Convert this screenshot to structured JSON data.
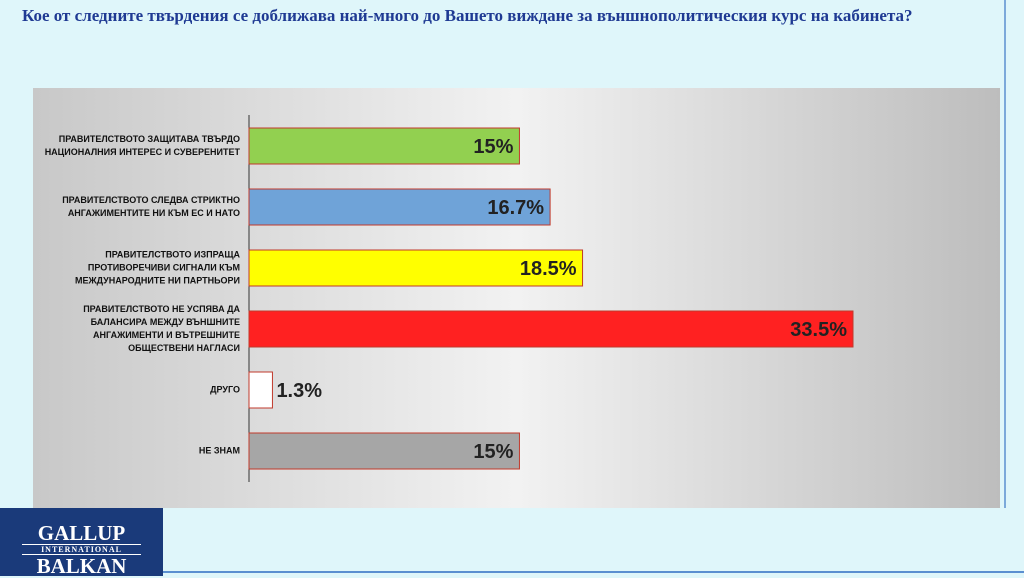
{
  "chart_data": {
    "type": "bar",
    "orientation": "horizontal",
    "title": "Кое от следните твърдения се доближава най-много до Вашето виждане за външнополитическия курс на кабинета?",
    "categories": [
      "ПРАВИТЕЛСТВОТО ЗАЩИТАВА ТВЪРДО НАЦИОНАЛНИЯ ИНТЕРЕС И СУВЕРЕНИТЕТ",
      "ПРАВИТЕЛСТВОТО СЛЕДВА СТРИКТНО АНГАЖИМЕНТИТЕ НИ КЪМ ЕС И НАТО",
      "ПРАВИТЕЛСТВОТО ИЗПРАЩА ПРОТИВОРЕЧИВИ СИГНАЛИ КЪМ МЕЖДУНАРОДНИТЕ НИ ПАРТНЬОРИ",
      "ПРАВИТЕЛСТВОТО НЕ УСПЯВА ДА БАЛАНСИРА МЕЖДУ ВЪНШНИТЕ АНГАЖИМЕНТИ И ВЪТРЕШНИТЕ ОБЩЕСТВЕНИ НАГЛАСИ",
      "ДРУГО",
      "НЕ ЗНАМ"
    ],
    "values": [
      15,
      16.7,
      18.5,
      33.5,
      1.3,
      15
    ],
    "value_labels": [
      "15%",
      "16.7%",
      "18.5%",
      "33.5%",
      "1.3%",
      "15%"
    ],
    "colors": [
      "#92d050",
      "#6fa3d8",
      "#ffff00",
      "#ff2121",
      "#ffffff",
      "#a6a6a6"
    ]
  },
  "logo": {
    "line1": "GALLUP",
    "line2": "INTERNATIONAL",
    "line3": "BALKAN"
  }
}
